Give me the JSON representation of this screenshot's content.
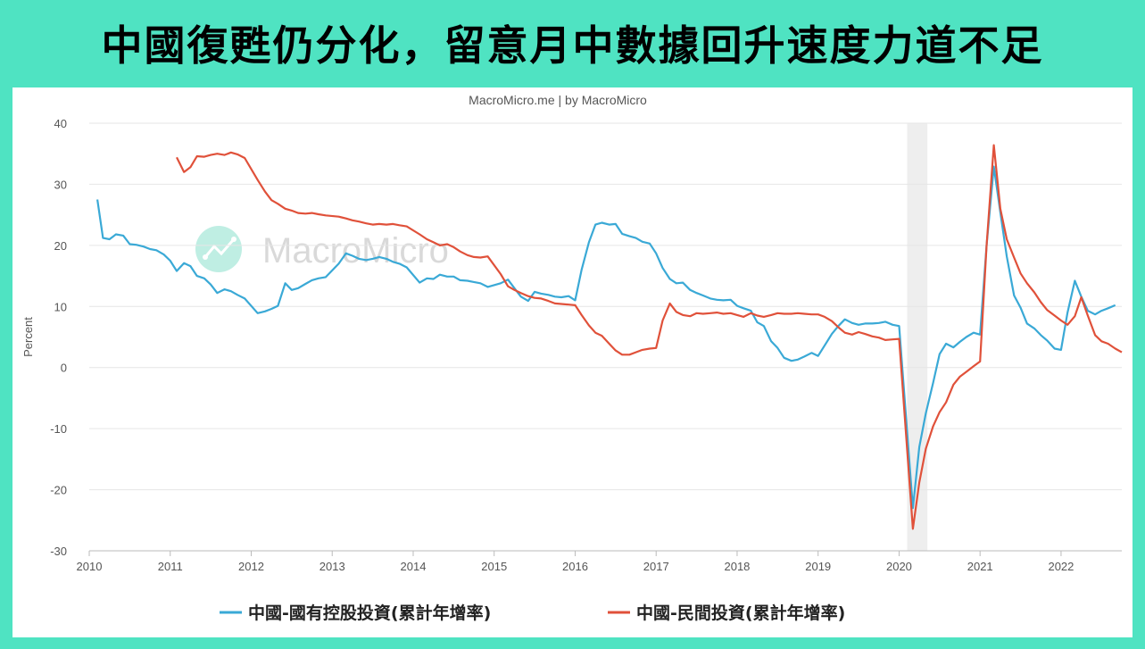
{
  "title": "中國復甦仍分化，留意月中數據回升速度力道不足",
  "credit": "MacroMicro.me | by MacroMicro",
  "watermark": "MacroMicro",
  "colors": {
    "frame": "#4fe3c2",
    "state_owned": "#3aa9d6",
    "private": "#e0513a",
    "recession_band": "#eeeeee"
  },
  "chart_data": {
    "type": "line",
    "ylabel": "Percent",
    "ylim": [
      -30,
      40
    ],
    "yticks": [
      -30,
      -20,
      -10,
      0,
      10,
      20,
      30,
      40
    ],
    "xlim": [
      2010.0,
      2022.75
    ],
    "xticks": [
      2010,
      2011,
      2012,
      2013,
      2014,
      2015,
      2016,
      2017,
      2018,
      2019,
      2020,
      2021,
      2022
    ],
    "grid": "horizontal",
    "legend_position": "bottom",
    "shaded_range": [
      2020.1,
      2020.35
    ],
    "series": [
      {
        "name": "中國-國有控股投資(累計年增率)",
        "color": "#3aa9d6",
        "points": [
          [
            2010.1,
            27.5
          ],
          [
            2010.17,
            21.2
          ],
          [
            2010.25,
            21.0
          ],
          [
            2010.33,
            21.8
          ],
          [
            2010.42,
            21.6
          ],
          [
            2010.5,
            20.2
          ],
          [
            2010.58,
            20.1
          ],
          [
            2010.67,
            19.8
          ],
          [
            2010.75,
            19.4
          ],
          [
            2010.83,
            19.2
          ],
          [
            2010.92,
            18.5
          ],
          [
            2011.0,
            17.5
          ],
          [
            2011.08,
            15.8
          ],
          [
            2011.17,
            17.1
          ],
          [
            2011.25,
            16.6
          ],
          [
            2011.33,
            15.0
          ],
          [
            2011.42,
            14.6
          ],
          [
            2011.5,
            13.6
          ],
          [
            2011.58,
            12.2
          ],
          [
            2011.67,
            12.8
          ],
          [
            2011.75,
            12.5
          ],
          [
            2011.83,
            11.9
          ],
          [
            2011.92,
            11.3
          ],
          [
            2012.08,
            8.9
          ],
          [
            2012.17,
            9.2
          ],
          [
            2012.25,
            9.6
          ],
          [
            2012.33,
            10.1
          ],
          [
            2012.42,
            13.8
          ],
          [
            2012.5,
            12.7
          ],
          [
            2012.58,
            13.0
          ],
          [
            2012.67,
            13.7
          ],
          [
            2012.75,
            14.3
          ],
          [
            2012.83,
            14.6
          ],
          [
            2012.92,
            14.8
          ],
          [
            2013.08,
            17.0
          ],
          [
            2013.17,
            18.7
          ],
          [
            2013.25,
            18.3
          ],
          [
            2013.33,
            17.8
          ],
          [
            2013.42,
            17.6
          ],
          [
            2013.5,
            17.8
          ],
          [
            2013.58,
            18.1
          ],
          [
            2013.67,
            17.8
          ],
          [
            2013.75,
            17.3
          ],
          [
            2013.83,
            17.0
          ],
          [
            2013.92,
            16.4
          ],
          [
            2014.08,
            13.9
          ],
          [
            2014.17,
            14.6
          ],
          [
            2014.25,
            14.5
          ],
          [
            2014.33,
            15.2
          ],
          [
            2014.42,
            14.9
          ],
          [
            2014.5,
            14.9
          ],
          [
            2014.58,
            14.3
          ],
          [
            2014.67,
            14.2
          ],
          [
            2014.75,
            14.0
          ],
          [
            2014.83,
            13.8
          ],
          [
            2014.92,
            13.2
          ],
          [
            2015.08,
            13.8
          ],
          [
            2015.17,
            14.4
          ],
          [
            2015.25,
            13.0
          ],
          [
            2015.33,
            11.6
          ],
          [
            2015.42,
            10.9
          ],
          [
            2015.5,
            12.4
          ],
          [
            2015.58,
            12.1
          ],
          [
            2015.67,
            11.9
          ],
          [
            2015.75,
            11.6
          ],
          [
            2015.83,
            11.5
          ],
          [
            2015.92,
            11.7
          ],
          [
            2016.0,
            11.0
          ],
          [
            2016.08,
            16.0
          ],
          [
            2016.17,
            20.5
          ],
          [
            2016.25,
            23.4
          ],
          [
            2016.33,
            23.7
          ],
          [
            2016.42,
            23.4
          ],
          [
            2016.5,
            23.5
          ],
          [
            2016.58,
            21.9
          ],
          [
            2016.67,
            21.5
          ],
          [
            2016.75,
            21.2
          ],
          [
            2016.83,
            20.6
          ],
          [
            2016.92,
            20.3
          ],
          [
            2017.0,
            18.7
          ],
          [
            2017.08,
            16.3
          ],
          [
            2017.17,
            14.5
          ],
          [
            2017.25,
            13.8
          ],
          [
            2017.33,
            13.9
          ],
          [
            2017.42,
            12.7
          ],
          [
            2017.5,
            12.2
          ],
          [
            2017.58,
            11.8
          ],
          [
            2017.67,
            11.3
          ],
          [
            2017.75,
            11.1
          ],
          [
            2017.83,
            11.0
          ],
          [
            2017.92,
            11.1
          ],
          [
            2018.0,
            10.1
          ],
          [
            2018.08,
            9.7
          ],
          [
            2018.17,
            9.3
          ],
          [
            2018.25,
            7.4
          ],
          [
            2018.33,
            6.8
          ],
          [
            2018.42,
            4.3
          ],
          [
            2018.5,
            3.2
          ],
          [
            2018.58,
            1.6
          ],
          [
            2018.67,
            1.1
          ],
          [
            2018.75,
            1.3
          ],
          [
            2018.83,
            1.8
          ],
          [
            2018.92,
            2.4
          ],
          [
            2019.0,
            1.9
          ],
          [
            2019.08,
            3.6
          ],
          [
            2019.17,
            5.5
          ],
          [
            2019.25,
            6.8
          ],
          [
            2019.33,
            7.9
          ],
          [
            2019.42,
            7.3
          ],
          [
            2019.5,
            7.0
          ],
          [
            2019.58,
            7.2
          ],
          [
            2019.67,
            7.2
          ],
          [
            2019.75,
            7.3
          ],
          [
            2019.83,
            7.5
          ],
          [
            2019.92,
            7.0
          ],
          [
            2020.0,
            6.8
          ],
          [
            2020.17,
            -23.0
          ],
          [
            2020.25,
            -13.0
          ],
          [
            2020.33,
            -7.5
          ],
          [
            2020.42,
            -2.5
          ],
          [
            2020.5,
            2.2
          ],
          [
            2020.58,
            3.9
          ],
          [
            2020.67,
            3.3
          ],
          [
            2020.75,
            4.2
          ],
          [
            2020.83,
            5.0
          ],
          [
            2020.92,
            5.7
          ],
          [
            2021.0,
            5.4
          ],
          [
            2021.08,
            20.0
          ],
          [
            2021.17,
            32.9
          ],
          [
            2021.25,
            25.4
          ],
          [
            2021.33,
            18.2
          ],
          [
            2021.42,
            11.8
          ],
          [
            2021.5,
            9.8
          ],
          [
            2021.58,
            7.2
          ],
          [
            2021.67,
            6.4
          ],
          [
            2021.75,
            5.3
          ],
          [
            2021.83,
            4.4
          ],
          [
            2021.92,
            3.1
          ],
          [
            2022.0,
            2.9
          ],
          [
            2022.08,
            9.0
          ],
          [
            2022.17,
            14.2
          ],
          [
            2022.25,
            11.6
          ],
          [
            2022.33,
            9.3
          ],
          [
            2022.42,
            8.7
          ],
          [
            2022.5,
            9.3
          ],
          [
            2022.58,
            9.7
          ],
          [
            2022.67,
            10.2
          ]
        ]
      },
      {
        "name": "中國-民間投資(累計年增率)",
        "color": "#e0513a",
        "points": [
          [
            2011.08,
            34.4
          ],
          [
            2011.17,
            32.0
          ],
          [
            2011.25,
            32.8
          ],
          [
            2011.33,
            34.6
          ],
          [
            2011.42,
            34.5
          ],
          [
            2011.5,
            34.8
          ],
          [
            2011.58,
            35.0
          ],
          [
            2011.67,
            34.8
          ],
          [
            2011.75,
            35.2
          ],
          [
            2011.83,
            34.9
          ],
          [
            2011.92,
            34.3
          ],
          [
            2012.08,
            30.7
          ],
          [
            2012.17,
            28.8
          ],
          [
            2012.25,
            27.4
          ],
          [
            2012.33,
            26.8
          ],
          [
            2012.42,
            26.0
          ],
          [
            2012.5,
            25.7
          ],
          [
            2012.58,
            25.3
          ],
          [
            2012.67,
            25.2
          ],
          [
            2012.75,
            25.3
          ],
          [
            2012.83,
            25.1
          ],
          [
            2012.92,
            24.9
          ],
          [
            2013.08,
            24.7
          ],
          [
            2013.17,
            24.4
          ],
          [
            2013.25,
            24.1
          ],
          [
            2013.33,
            23.9
          ],
          [
            2013.42,
            23.6
          ],
          [
            2013.5,
            23.4
          ],
          [
            2013.58,
            23.5
          ],
          [
            2013.67,
            23.4
          ],
          [
            2013.75,
            23.5
          ],
          [
            2013.83,
            23.3
          ],
          [
            2013.92,
            23.1
          ],
          [
            2014.08,
            21.8
          ],
          [
            2014.17,
            21.0
          ],
          [
            2014.25,
            20.5
          ],
          [
            2014.33,
            20.0
          ],
          [
            2014.42,
            20.2
          ],
          [
            2014.5,
            19.7
          ],
          [
            2014.58,
            19.0
          ],
          [
            2014.67,
            18.4
          ],
          [
            2014.75,
            18.1
          ],
          [
            2014.83,
            18.0
          ],
          [
            2014.92,
            18.2
          ],
          [
            2015.08,
            15.3
          ],
          [
            2015.17,
            13.3
          ],
          [
            2015.25,
            12.7
          ],
          [
            2015.33,
            12.2
          ],
          [
            2015.42,
            11.7
          ],
          [
            2015.5,
            11.4
          ],
          [
            2015.58,
            11.3
          ],
          [
            2015.67,
            10.9
          ],
          [
            2015.75,
            10.5
          ],
          [
            2015.83,
            10.4
          ],
          [
            2015.92,
            10.3
          ],
          [
            2016.0,
            10.2
          ],
          [
            2016.08,
            8.6
          ],
          [
            2016.17,
            6.9
          ],
          [
            2016.25,
            5.7
          ],
          [
            2016.33,
            5.2
          ],
          [
            2016.42,
            3.9
          ],
          [
            2016.5,
            2.8
          ],
          [
            2016.58,
            2.1
          ],
          [
            2016.67,
            2.1
          ],
          [
            2016.75,
            2.5
          ],
          [
            2016.83,
            2.9
          ],
          [
            2016.92,
            3.1
          ],
          [
            2017.0,
            3.2
          ],
          [
            2017.08,
            7.7
          ],
          [
            2017.17,
            10.5
          ],
          [
            2017.25,
            9.1
          ],
          [
            2017.33,
            8.6
          ],
          [
            2017.42,
            8.4
          ],
          [
            2017.5,
            8.9
          ],
          [
            2017.58,
            8.8
          ],
          [
            2017.67,
            8.9
          ],
          [
            2017.75,
            9.0
          ],
          [
            2017.83,
            8.8
          ],
          [
            2017.92,
            8.9
          ],
          [
            2018.0,
            8.6
          ],
          [
            2018.08,
            8.3
          ],
          [
            2018.17,
            8.9
          ],
          [
            2018.25,
            8.5
          ],
          [
            2018.33,
            8.3
          ],
          [
            2018.42,
            8.6
          ],
          [
            2018.5,
            8.9
          ],
          [
            2018.58,
            8.8
          ],
          [
            2018.67,
            8.8
          ],
          [
            2018.75,
            8.9
          ],
          [
            2018.83,
            8.8
          ],
          [
            2018.92,
            8.7
          ],
          [
            2019.0,
            8.7
          ],
          [
            2019.08,
            8.3
          ],
          [
            2019.17,
            7.6
          ],
          [
            2019.25,
            6.6
          ],
          [
            2019.33,
            5.7
          ],
          [
            2019.42,
            5.4
          ],
          [
            2019.5,
            5.8
          ],
          [
            2019.58,
            5.5
          ],
          [
            2019.67,
            5.1
          ],
          [
            2019.75,
            4.9
          ],
          [
            2019.83,
            4.5
          ],
          [
            2019.92,
            4.6
          ],
          [
            2020.0,
            4.7
          ],
          [
            2020.17,
            -26.4
          ],
          [
            2020.25,
            -18.8
          ],
          [
            2020.33,
            -13.3
          ],
          [
            2020.42,
            -9.6
          ],
          [
            2020.5,
            -7.3
          ],
          [
            2020.58,
            -5.7
          ],
          [
            2020.67,
            -2.8
          ],
          [
            2020.75,
            -1.5
          ],
          [
            2020.83,
            -0.7
          ],
          [
            2020.92,
            0.2
          ],
          [
            2021.0,
            1.0
          ],
          [
            2021.08,
            20.0
          ],
          [
            2021.17,
            36.4
          ],
          [
            2021.25,
            26.0
          ],
          [
            2021.33,
            21.0
          ],
          [
            2021.42,
            18.0
          ],
          [
            2021.5,
            15.4
          ],
          [
            2021.58,
            13.8
          ],
          [
            2021.67,
            12.3
          ],
          [
            2021.75,
            10.7
          ],
          [
            2021.83,
            9.4
          ],
          [
            2021.92,
            8.5
          ],
          [
            2022.0,
            7.7
          ],
          [
            2022.08,
            7.0
          ],
          [
            2022.17,
            8.4
          ],
          [
            2022.25,
            11.5
          ],
          [
            2022.33,
            8.5
          ],
          [
            2022.42,
            5.3
          ],
          [
            2022.5,
            4.3
          ],
          [
            2022.58,
            3.9
          ],
          [
            2022.67,
            3.1
          ],
          [
            2022.75,
            2.5
          ]
        ]
      }
    ]
  }
}
